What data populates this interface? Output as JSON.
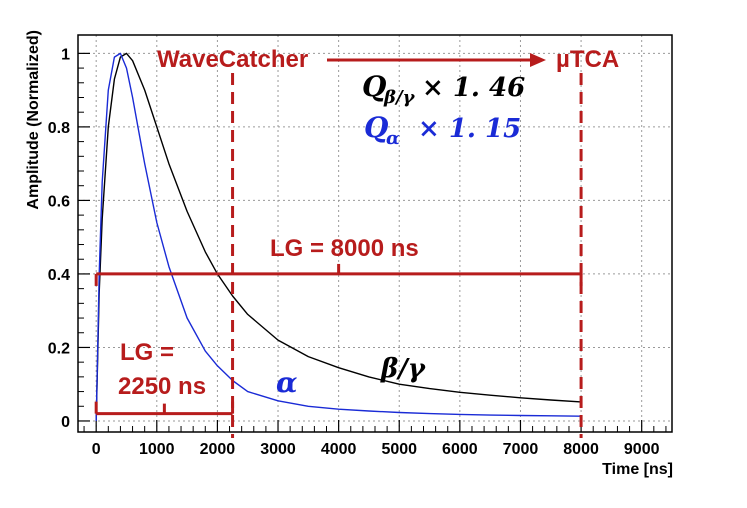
{
  "chart_data": {
    "type": "line",
    "title": "",
    "xlabel": "Time [ns]",
    "ylabel": "Amplitude (Normalized)",
    "xlim": [
      -300,
      9500
    ],
    "ylim": [
      -0.03,
      1.05
    ],
    "x_ticks": [
      0,
      1000,
      2000,
      3000,
      4000,
      5000,
      6000,
      7000,
      8000,
      9000
    ],
    "x_tick_labels": [
      "0",
      "1000",
      "2000",
      "3000",
      "4000",
      "5000",
      "6000",
      "7000",
      "8000",
      "9000"
    ],
    "y_ticks": [
      0,
      0.2,
      0.4,
      0.6,
      0.8,
      1.0
    ],
    "y_tick_labels": [
      "0",
      "0.2",
      "0.4",
      "0.6",
      "0.8",
      "1"
    ],
    "grid": true,
    "series": [
      {
        "name": "β/γ",
        "color": "#000000",
        "x": [
          0,
          50,
          100,
          200,
          300,
          400,
          500,
          600,
          800,
          1000,
          1200,
          1500,
          1800,
          2000,
          2250,
          2500,
          3000,
          3500,
          4000,
          4500,
          5000,
          5500,
          6000,
          6500,
          7000,
          7500,
          8000
        ],
        "y": [
          0.0,
          0.35,
          0.55,
          0.8,
          0.93,
          0.99,
          1.0,
          0.98,
          0.9,
          0.8,
          0.7,
          0.57,
          0.46,
          0.4,
          0.34,
          0.29,
          0.22,
          0.175,
          0.145,
          0.12,
          0.1,
          0.088,
          0.078,
          0.07,
          0.063,
          0.057,
          0.052
        ]
      },
      {
        "name": "α",
        "color": "#1a2bd6",
        "x": [
          0,
          50,
          100,
          200,
          300,
          400,
          500,
          600,
          700,
          800,
          1000,
          1200,
          1500,
          1800,
          2000,
          2250,
          2500,
          3000,
          3500,
          4000,
          4500,
          5000,
          5500,
          6000,
          6500,
          7000,
          7500,
          8000
        ],
        "y": [
          0.0,
          0.4,
          0.65,
          0.9,
          0.99,
          1.0,
          0.96,
          0.88,
          0.79,
          0.7,
          0.54,
          0.42,
          0.28,
          0.19,
          0.15,
          0.11,
          0.08,
          0.055,
          0.04,
          0.032,
          0.027,
          0.023,
          0.02,
          0.018,
          0.016,
          0.015,
          0.014,
          0.013
        ]
      }
    ],
    "annotations": {
      "wavecatcher_label": "WaveCatcher",
      "utca_label": "µTCA",
      "wavecatcher_line_x": 2250,
      "utca_line_x": 8000,
      "lg_long_label": "LG = 8000 ns",
      "lg_long_level": 0.4,
      "lg_long_range": [
        0,
        8000
      ],
      "lg_short_label_line1": "LG =",
      "lg_short_label_line2": "2250 ns",
      "lg_short_level": 0.02,
      "lg_short_range": [
        0,
        2250
      ],
      "q_beta_symbol": "Q",
      "q_beta_subscript": "β/γ",
      "q_beta_factor": "× 1. 46",
      "q_alpha_symbol": "Q",
      "q_alpha_subscript": "α",
      "q_alpha_factor": "× 1. 15",
      "beta_gamma_curve_label": "β/γ",
      "alpha_curve_label": "α",
      "annotation_color": "#b71c1c",
      "alpha_color": "#1a2bd6"
    }
  }
}
